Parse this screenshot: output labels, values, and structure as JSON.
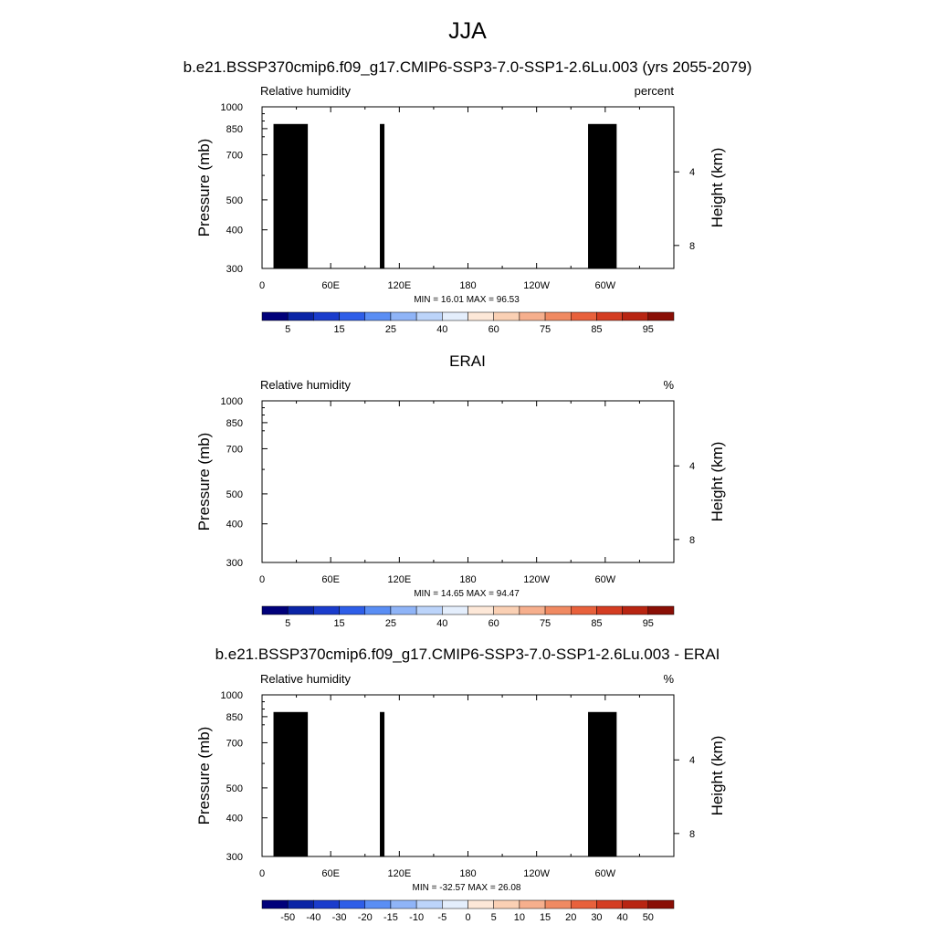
{
  "main_title": "JJA",
  "colors": {
    "rh_levels": [
      "#00007a",
      "#0a24a6",
      "#1a3ccc",
      "#2e5ee8",
      "#5a8ef4",
      "#8fb4f7",
      "#bcd4fa",
      "#e4eefc",
      "#fde8d8",
      "#fad0b4",
      "#f6af8d",
      "#f08a62",
      "#e8613c",
      "#d43d22",
      "#b82512",
      "#8a0f06"
    ],
    "diff_levels": [
      "#00007a",
      "#0a24a6",
      "#1a3ccc",
      "#2e5ee8",
      "#5a8ef4",
      "#8fb4f7",
      "#bcd4fa",
      "#e4eefc",
      "#fde8d8",
      "#fad0b4",
      "#f6af8d",
      "#f08a62",
      "#e8613c",
      "#d43d22",
      "#b82512",
      "#8a0f06"
    ]
  },
  "chart_data": [
    {
      "type": "heatmap",
      "panel_title": "b.e21.BSSP370cmip6.f09_g17.CMIP6-SSP3-7.0-SSP1-2.6Lu.003 (yrs 2055-2079)",
      "variable": "Relative humidity",
      "units": "percent",
      "ylabel": "Pressure (mb)",
      "ylabel_right": "Height (km)",
      "x_ticks": [
        "0",
        "60E",
        "120E",
        "180",
        "120W",
        "60W"
      ],
      "y_ticks": [
        "300",
        "400",
        "500",
        "700",
        "850",
        "1000"
      ],
      "y2_ticks": [
        "8",
        "4"
      ],
      "x_range": [
        0,
        360
      ],
      "y_range": [
        1000,
        300
      ],
      "min_max_text": "MIN = 16.01   MAX = 96.53",
      "colorbar_labels": [
        "5",
        "15",
        "25",
        "40",
        "60",
        "75",
        "85",
        "95"
      ],
      "palette": "rh_levels",
      "topography": true
    },
    {
      "type": "heatmap",
      "panel_title": "ERAI",
      "variable": "Relative humidity",
      "units": "%",
      "ylabel": "Pressure (mb)",
      "ylabel_right": "Height (km)",
      "x_ticks": [
        "0",
        "60E",
        "120E",
        "180",
        "120W",
        "60W"
      ],
      "y_ticks": [
        "300",
        "400",
        "500",
        "700",
        "850",
        "1000"
      ],
      "y2_ticks": [
        "8",
        "4"
      ],
      "x_range": [
        0,
        360
      ],
      "y_range": [
        1000,
        300
      ],
      "min_max_text": "MIN = 14.65   MAX = 94.47",
      "colorbar_labels": [
        "5",
        "15",
        "25",
        "40",
        "60",
        "75",
        "85",
        "95"
      ],
      "palette": "rh_levels",
      "topography": false
    },
    {
      "type": "heatmap",
      "panel_title": "b.e21.BSSP370cmip6.f09_g17.CMIP6-SSP3-7.0-SSP1-2.6Lu.003 - ERAI",
      "variable": "Relative humidity",
      "units": "%",
      "ylabel": "Pressure (mb)",
      "ylabel_right": "Height (km)",
      "x_ticks": [
        "0",
        "60E",
        "120E",
        "180",
        "120W",
        "60W"
      ],
      "y_ticks": [
        "300",
        "400",
        "500",
        "700",
        "850",
        "1000"
      ],
      "y2_ticks": [
        "8",
        "4"
      ],
      "x_range": [
        0,
        360
      ],
      "y_range": [
        1000,
        300
      ],
      "min_max_text": "MIN = -32.57   MAX = 26.08",
      "colorbar_labels": [
        "-50",
        "-40",
        "-30",
        "-20",
        "-15",
        "-10",
        "-5",
        "0",
        "5",
        "10",
        "15",
        "20",
        "30",
        "40",
        "50"
      ],
      "palette": "diff_levels",
      "topography": true
    }
  ]
}
